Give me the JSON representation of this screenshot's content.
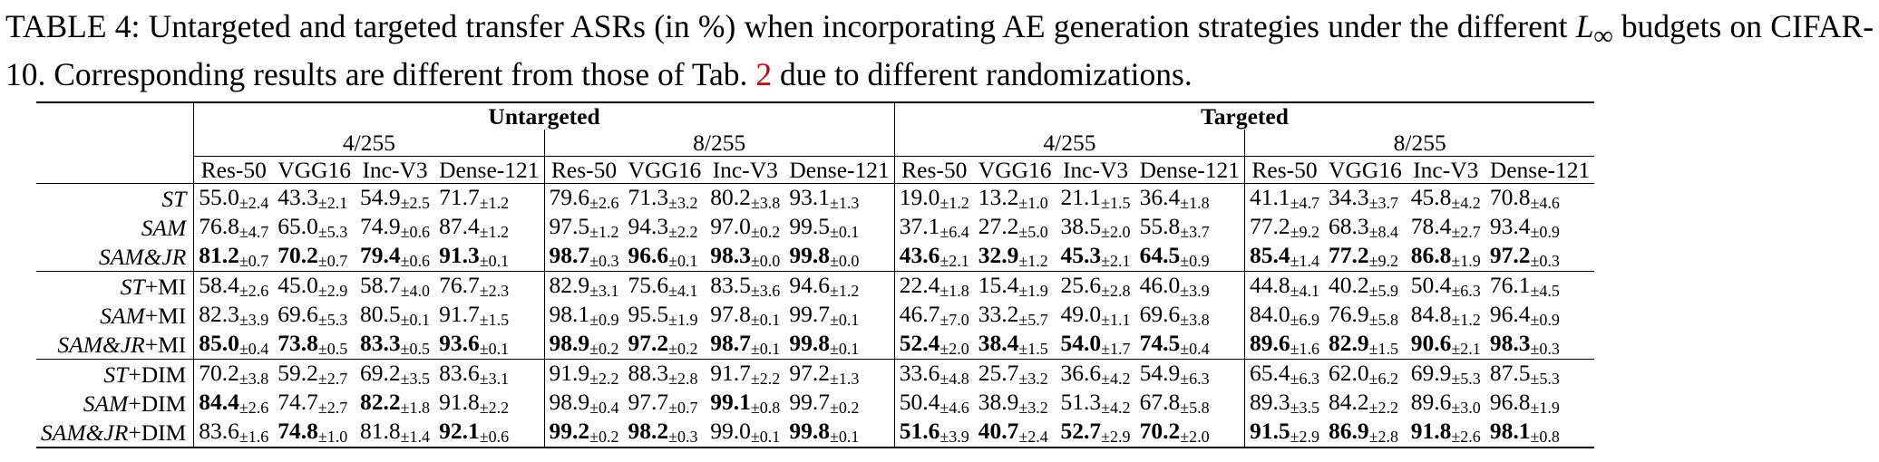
{
  "caption": {
    "label": "TABLE 4:",
    "text_before_math": " Untargeted and targeted transfer ASRs (in %) when incorporating AE generation strategies under the different ",
    "math_L": "L",
    "math_sub": "∞",
    "text_before_ref": " budgets on CIFAR-10. Corresponding results are different from those of Tab. ",
    "ref": "2",
    "text_after_ref": " due to different randomizations."
  },
  "table": {
    "groups": [
      "Untargeted",
      "Targeted"
    ],
    "budgets": [
      "4/255",
      "8/255",
      "4/255",
      "8/255"
    ],
    "models": [
      "Res-50",
      "VGG16",
      "Inc-V3",
      "Dense-121"
    ],
    "rows": [
      {
        "m": "ST",
        "suf": "",
        "cells": [
          {
            "v": "55.0",
            "s": "±2.4",
            "b": false
          },
          {
            "v": "43.3",
            "s": "±2.1",
            "b": false
          },
          {
            "v": "54.9",
            "s": "±2.5",
            "b": false
          },
          {
            "v": "71.7",
            "s": "±1.2",
            "b": false
          },
          {
            "v": "79.6",
            "s": "±2.6",
            "b": false
          },
          {
            "v": "71.3",
            "s": "±3.2",
            "b": false
          },
          {
            "v": "80.2",
            "s": "±3.8",
            "b": false
          },
          {
            "v": "93.1",
            "s": "±1.3",
            "b": false
          },
          {
            "v": "19.0",
            "s": "±1.2",
            "b": false
          },
          {
            "v": "13.2",
            "s": "±1.0",
            "b": false
          },
          {
            "v": "21.1",
            "s": "±1.5",
            "b": false
          },
          {
            "v": "36.4",
            "s": "±1.8",
            "b": false
          },
          {
            "v": "41.1",
            "s": "±4.7",
            "b": false
          },
          {
            "v": "34.3",
            "s": "±3.7",
            "b": false
          },
          {
            "v": "45.8",
            "s": "±4.2",
            "b": false
          },
          {
            "v": "70.8",
            "s": "±4.6",
            "b": false
          }
        ]
      },
      {
        "m": "SAM",
        "suf": "",
        "cells": [
          {
            "v": "76.8",
            "s": "±4.7",
            "b": false
          },
          {
            "v": "65.0",
            "s": "±5.3",
            "b": false
          },
          {
            "v": "74.9",
            "s": "±0.6",
            "b": false
          },
          {
            "v": "87.4",
            "s": "±1.2",
            "b": false
          },
          {
            "v": "97.5",
            "s": "±1.2",
            "b": false
          },
          {
            "v": "94.3",
            "s": "±2.2",
            "b": false
          },
          {
            "v": "97.0",
            "s": "±0.2",
            "b": false
          },
          {
            "v": "99.5",
            "s": "±0.1",
            "b": false
          },
          {
            "v": "37.1",
            "s": "±6.4",
            "b": false
          },
          {
            "v": "27.2",
            "s": "±5.0",
            "b": false
          },
          {
            "v": "38.5",
            "s": "±2.0",
            "b": false
          },
          {
            "v": "55.8",
            "s": "±3.7",
            "b": false
          },
          {
            "v": "77.2",
            "s": "±9.2",
            "b": false
          },
          {
            "v": "68.3",
            "s": "±8.4",
            "b": false
          },
          {
            "v": "78.4",
            "s": "±2.7",
            "b": false
          },
          {
            "v": "93.4",
            "s": "±0.9",
            "b": false
          }
        ]
      },
      {
        "m": "SAM&JR",
        "suf": "",
        "cells": [
          {
            "v": "81.2",
            "s": "±0.7",
            "b": true
          },
          {
            "v": "70.2",
            "s": "±0.7",
            "b": true
          },
          {
            "v": "79.4",
            "s": "±0.6",
            "b": true
          },
          {
            "v": "91.3",
            "s": "±0.1",
            "b": true
          },
          {
            "v": "98.7",
            "s": "±0.3",
            "b": true
          },
          {
            "v": "96.6",
            "s": "±0.1",
            "b": true
          },
          {
            "v": "98.3",
            "s": "±0.0",
            "b": true
          },
          {
            "v": "99.8",
            "s": "±0.0",
            "b": true
          },
          {
            "v": "43.6",
            "s": "±2.1",
            "b": true
          },
          {
            "v": "32.9",
            "s": "±1.2",
            "b": true
          },
          {
            "v": "45.3",
            "s": "±2.1",
            "b": true
          },
          {
            "v": "64.5",
            "s": "±0.9",
            "b": true
          },
          {
            "v": "85.4",
            "s": "±1.4",
            "b": true
          },
          {
            "v": "77.2",
            "s": "±9.2",
            "b": true
          },
          {
            "v": "86.8",
            "s": "±1.9",
            "b": true
          },
          {
            "v": "97.2",
            "s": "±0.3",
            "b": true
          }
        ]
      },
      {
        "m": "ST",
        "suf": "+MI",
        "cells": [
          {
            "v": "58.4",
            "s": "±2.6",
            "b": false
          },
          {
            "v": "45.0",
            "s": "±2.9",
            "b": false
          },
          {
            "v": "58.7",
            "s": "±4.0",
            "b": false
          },
          {
            "v": "76.7",
            "s": "±2.3",
            "b": false
          },
          {
            "v": "82.9",
            "s": "±3.1",
            "b": false
          },
          {
            "v": "75.6",
            "s": "±4.1",
            "b": false
          },
          {
            "v": "83.5",
            "s": "±3.6",
            "b": false
          },
          {
            "v": "94.6",
            "s": "±1.2",
            "b": false
          },
          {
            "v": "22.4",
            "s": "±1.8",
            "b": false
          },
          {
            "v": "15.4",
            "s": "±1.9",
            "b": false
          },
          {
            "v": "25.6",
            "s": "±2.8",
            "b": false
          },
          {
            "v": "46.0",
            "s": "±3.9",
            "b": false
          },
          {
            "v": "44.8",
            "s": "±4.1",
            "b": false
          },
          {
            "v": "40.2",
            "s": "±5.9",
            "b": false
          },
          {
            "v": "50.4",
            "s": "±6.3",
            "b": false
          },
          {
            "v": "76.1",
            "s": "±4.5",
            "b": false
          }
        ]
      },
      {
        "m": "SAM",
        "suf": "+MI",
        "cells": [
          {
            "v": "82.3",
            "s": "±3.9",
            "b": false
          },
          {
            "v": "69.6",
            "s": "±5.3",
            "b": false
          },
          {
            "v": "80.5",
            "s": "±0.1",
            "b": false
          },
          {
            "v": "91.7",
            "s": "±1.5",
            "b": false
          },
          {
            "v": "98.1",
            "s": "±0.9",
            "b": false
          },
          {
            "v": "95.5",
            "s": "±1.9",
            "b": false
          },
          {
            "v": "97.8",
            "s": "±0.1",
            "b": false
          },
          {
            "v": "99.7",
            "s": "±0.1",
            "b": false
          },
          {
            "v": "46.7",
            "s": "±7.0",
            "b": false
          },
          {
            "v": "33.2",
            "s": "±5.7",
            "b": false
          },
          {
            "v": "49.0",
            "s": "±1.1",
            "b": false
          },
          {
            "v": "69.6",
            "s": "±3.8",
            "b": false
          },
          {
            "v": "84.0",
            "s": "±6.9",
            "b": false
          },
          {
            "v": "76.9",
            "s": "±5.8",
            "b": false
          },
          {
            "v": "84.8",
            "s": "±1.2",
            "b": false
          },
          {
            "v": "96.4",
            "s": "±0.9",
            "b": false
          }
        ]
      },
      {
        "m": "SAM&JR",
        "suf": "+MI",
        "cells": [
          {
            "v": "85.0",
            "s": "±0.4",
            "b": true
          },
          {
            "v": "73.8",
            "s": "±0.5",
            "b": true
          },
          {
            "v": "83.3",
            "s": "±0.5",
            "b": true
          },
          {
            "v": "93.6",
            "s": "±0.1",
            "b": true
          },
          {
            "v": "98.9",
            "s": "±0.2",
            "b": true
          },
          {
            "v": "97.2",
            "s": "±0.2",
            "b": true
          },
          {
            "v": "98.7",
            "s": "±0.1",
            "b": true
          },
          {
            "v": "99.8",
            "s": "±0.1",
            "b": true
          },
          {
            "v": "52.4",
            "s": "±2.0",
            "b": true
          },
          {
            "v": "38.4",
            "s": "±1.5",
            "b": true
          },
          {
            "v": "54.0",
            "s": "±1.7",
            "b": true
          },
          {
            "v": "74.5",
            "s": "±0.4",
            "b": true
          },
          {
            "v": "89.6",
            "s": "±1.6",
            "b": true
          },
          {
            "v": "82.9",
            "s": "±1.5",
            "b": true
          },
          {
            "v": "90.6",
            "s": "±2.1",
            "b": true
          },
          {
            "v": "98.3",
            "s": "±0.3",
            "b": true
          }
        ]
      },
      {
        "m": "ST",
        "suf": "+DIM",
        "cells": [
          {
            "v": "70.2",
            "s": "±3.8",
            "b": false
          },
          {
            "v": "59.2",
            "s": "±2.7",
            "b": false
          },
          {
            "v": "69.2",
            "s": "±3.5",
            "b": false
          },
          {
            "v": "83.6",
            "s": "±3.1",
            "b": false
          },
          {
            "v": "91.9",
            "s": "±2.2",
            "b": false
          },
          {
            "v": "88.3",
            "s": "±2.8",
            "b": false
          },
          {
            "v": "91.7",
            "s": "±2.2",
            "b": false
          },
          {
            "v": "97.2",
            "s": "±1.3",
            "b": false
          },
          {
            "v": "33.6",
            "s": "±4.8",
            "b": false
          },
          {
            "v": "25.7",
            "s": "±3.2",
            "b": false
          },
          {
            "v": "36.6",
            "s": "±4.2",
            "b": false
          },
          {
            "v": "54.9",
            "s": "±6.3",
            "b": false
          },
          {
            "v": "65.4",
            "s": "±6.3",
            "b": false
          },
          {
            "v": "62.0",
            "s": "±6.2",
            "b": false
          },
          {
            "v": "69.9",
            "s": "±5.3",
            "b": false
          },
          {
            "v": "87.5",
            "s": "±5.3",
            "b": false
          }
        ]
      },
      {
        "m": "SAM",
        "suf": "+DIM",
        "cells": [
          {
            "v": "84.4",
            "s": "±2.6",
            "b": true
          },
          {
            "v": "74.7",
            "s": "±2.7",
            "b": false
          },
          {
            "v": "82.2",
            "s": "±1.8",
            "b": true
          },
          {
            "v": "91.8",
            "s": "±2.2",
            "b": false
          },
          {
            "v": "98.9",
            "s": "±0.4",
            "b": false
          },
          {
            "v": "97.7",
            "s": "±0.7",
            "b": false
          },
          {
            "v": "99.1",
            "s": "±0.8",
            "b": true
          },
          {
            "v": "99.7",
            "s": "±0.2",
            "b": false
          },
          {
            "v": "50.4",
            "s": "±4.6",
            "b": false
          },
          {
            "v": "38.9",
            "s": "±3.2",
            "b": false
          },
          {
            "v": "51.3",
            "s": "±4.2",
            "b": false
          },
          {
            "v": "67.8",
            "s": "±5.8",
            "b": false
          },
          {
            "v": "89.3",
            "s": "±3.5",
            "b": false
          },
          {
            "v": "84.2",
            "s": "±2.2",
            "b": false
          },
          {
            "v": "89.6",
            "s": "±3.0",
            "b": false
          },
          {
            "v": "96.8",
            "s": "±1.9",
            "b": false
          }
        ]
      },
      {
        "m": "SAM&JR",
        "suf": "+DIM",
        "cells": [
          {
            "v": "83.6",
            "s": "±1.6",
            "b": false
          },
          {
            "v": "74.8",
            "s": "±1.0",
            "b": true
          },
          {
            "v": "81.8",
            "s": "±1.4",
            "b": false
          },
          {
            "v": "92.1",
            "s": "±0.6",
            "b": true
          },
          {
            "v": "99.2",
            "s": "±0.2",
            "b": true
          },
          {
            "v": "98.2",
            "s": "±0.3",
            "b": true
          },
          {
            "v": "99.0",
            "s": "±0.1",
            "b": false
          },
          {
            "v": "99.8",
            "s": "±0.1",
            "b": true
          },
          {
            "v": "51.6",
            "s": "±3.9",
            "b": true
          },
          {
            "v": "40.7",
            "s": "±2.4",
            "b": true
          },
          {
            "v": "52.7",
            "s": "±2.9",
            "b": true
          },
          {
            "v": "70.2",
            "s": "±2.0",
            "b": true
          },
          {
            "v": "91.5",
            "s": "±2.9",
            "b": true
          },
          {
            "v": "86.9",
            "s": "±2.8",
            "b": true
          },
          {
            "v": "91.8",
            "s": "±2.6",
            "b": true
          },
          {
            "v": "98.1",
            "s": "±0.8",
            "b": true
          }
        ]
      }
    ]
  }
}
